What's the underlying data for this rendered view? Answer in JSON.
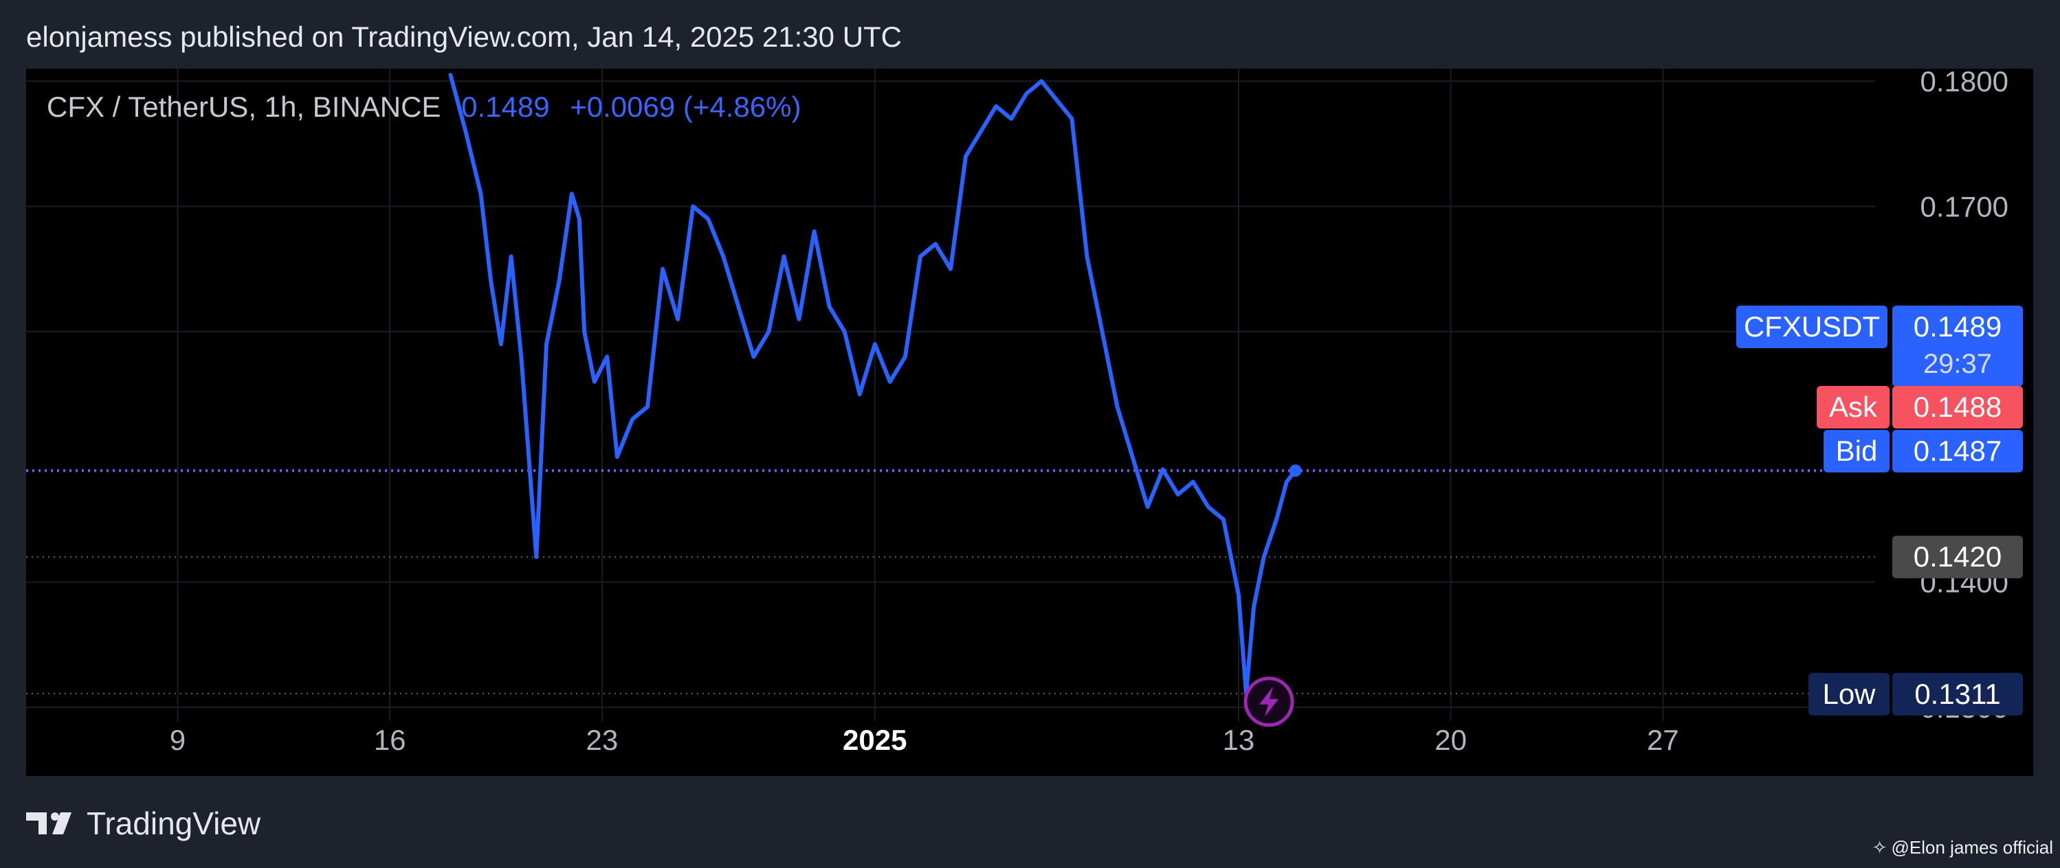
{
  "header": {
    "publisher_text": "elonjamess published on TradingView.com, Jan 14, 2025 21:30 UTC"
  },
  "legend": {
    "symbol": "CFX / TetherUS, 1h, BINANCE",
    "price": "0.1489",
    "change": "+0.0069 (+4.86%)"
  },
  "footer": {
    "logo_text": "TradingView",
    "watermark": "@Elon james official",
    "watermark_icon": "sparkle-diamond-icon"
  },
  "colors": {
    "background": "#1e222d",
    "chart_bg": "#000000",
    "line": "#2962ff",
    "symbol_badge": "#2962ff",
    "ask_badge": "#f7525f",
    "bid_badge": "#2962ff",
    "level_badge": "#4a4a4a",
    "low_badge": "#132457",
    "grid": "#1b1d24",
    "flash_icon": "#9c27b0"
  },
  "chart_data": {
    "type": "line",
    "title": "CFX / TetherUS, 1h, BINANCE",
    "xlabel": "",
    "ylabel": "",
    "grid": true,
    "x_ticks": [
      {
        "label": "9",
        "date": "2024-12-09",
        "bold": false
      },
      {
        "label": "16",
        "date": "2024-12-16",
        "bold": false
      },
      {
        "label": "23",
        "date": "2024-12-23",
        "bold": false
      },
      {
        "label": "2025",
        "date": "2025-01-01",
        "bold": true
      },
      {
        "label": "13",
        "date": "2025-01-13",
        "bold": false
      },
      {
        "label": "20",
        "date": "2025-01-20",
        "bold": false
      },
      {
        "label": "27",
        "date": "2025-01-27",
        "bold": false
      }
    ],
    "y_ticks": [
      "0.1800",
      "0.1700",
      "0.1600",
      "0.1400",
      "0.1300"
    ],
    "y_range": [
      0.1289,
      0.181
    ],
    "x_range": [
      "2024-12-04",
      "2025-02-03"
    ],
    "series": [
      {
        "values": [
          [
            "2024-12-18",
            0.1805
          ],
          [
            "2024-12-18T12:00",
            0.176
          ],
          [
            "2024-12-19",
            0.171
          ],
          [
            "2024-12-19T08:00",
            0.164
          ],
          [
            "2024-12-19T16:00",
            0.159
          ],
          [
            "2024-12-20",
            0.166
          ],
          [
            "2024-12-20T08:00",
            0.158
          ],
          [
            "2024-12-20T14:00",
            0.15
          ],
          [
            "2024-12-20T20:00",
            0.142
          ],
          [
            "2024-12-21T04:00",
            0.159
          ],
          [
            "2024-12-21T14:00",
            0.164
          ],
          [
            "2024-12-22",
            0.171
          ],
          [
            "2024-12-22T06:00",
            0.169
          ],
          [
            "2024-12-22T10:00",
            0.16
          ],
          [
            "2024-12-22T18:00",
            0.156
          ],
          [
            "2024-12-23T04:00",
            0.158
          ],
          [
            "2024-12-23T12:00",
            0.15
          ],
          [
            "2024-12-24",
            0.153
          ],
          [
            "2024-12-24T12:00",
            0.154
          ],
          [
            "2024-12-25",
            0.165
          ],
          [
            "2024-12-25T12:00",
            0.161
          ],
          [
            "2024-12-26",
            0.17
          ],
          [
            "2024-12-26T12:00",
            0.169
          ],
          [
            "2024-12-27",
            0.166
          ],
          [
            "2024-12-27T12:00",
            0.162
          ],
          [
            "2024-12-28",
            0.158
          ],
          [
            "2024-12-28T12:00",
            0.16
          ],
          [
            "2024-12-29",
            0.166
          ],
          [
            "2024-12-29T12:00",
            0.161
          ],
          [
            "2024-12-30",
            0.168
          ],
          [
            "2024-12-30T12:00",
            0.162
          ],
          [
            "2024-12-31",
            0.16
          ],
          [
            "2024-12-31T12:00",
            0.155
          ],
          [
            "2025-01-01",
            0.159
          ],
          [
            "2025-01-01T12:00",
            0.156
          ],
          [
            "2025-01-02",
            0.158
          ],
          [
            "2025-01-02T12:00",
            0.166
          ],
          [
            "2025-01-03",
            0.167
          ],
          [
            "2025-01-03T12:00",
            0.165
          ],
          [
            "2025-01-04",
            0.174
          ],
          [
            "2025-01-04T12:00",
            0.176
          ],
          [
            "2025-01-05",
            0.178
          ],
          [
            "2025-01-05T12:00",
            0.177
          ],
          [
            "2025-01-06",
            0.179
          ],
          [
            "2025-01-06T12:00",
            0.18
          ],
          [
            "2025-01-07",
            0.1785
          ],
          [
            "2025-01-07T12:00",
            0.177
          ],
          [
            "2025-01-08",
            0.166
          ],
          [
            "2025-01-08T12:00",
            0.16
          ],
          [
            "2025-01-09",
            0.154
          ],
          [
            "2025-01-09T12:00",
            0.15
          ],
          [
            "2025-01-10",
            0.146
          ],
          [
            "2025-01-10T12:00",
            0.149
          ],
          [
            "2025-01-11",
            0.147
          ],
          [
            "2025-01-11T12:00",
            0.148
          ],
          [
            "2025-01-12",
            0.146
          ],
          [
            "2025-01-12T12:00",
            0.145
          ],
          [
            "2025-01-13",
            0.139
          ],
          [
            "2025-01-13T06:00",
            0.1311
          ],
          [
            "2025-01-13T12:00",
            0.138
          ],
          [
            "2025-01-13T20:00",
            0.142
          ],
          [
            "2025-01-14T06:00",
            0.145
          ],
          [
            "2025-01-14T14:00",
            0.148
          ],
          [
            "2025-01-14T21:00",
            0.1489
          ]
        ]
      }
    ],
    "price_lines": [
      {
        "value": 0.1489,
        "style": "dotted",
        "color": "#7b5cf0"
      },
      {
        "value": 0.142,
        "style": "dotted",
        "color": "#666666"
      },
      {
        "value": 0.1311,
        "style": "dotted",
        "color": "#666666"
      }
    ],
    "axis_badges": [
      {
        "label": "CFXUSDT",
        "value": "0.1489",
        "sub": "29:37",
        "color": "#2962ff"
      },
      {
        "label": "Ask",
        "value": "0.1488",
        "color": "#f7525f"
      },
      {
        "label": "Bid",
        "value": "0.1487",
        "color": "#2962ff"
      },
      {
        "label": "",
        "value": "0.1420",
        "color": "#4a4a4a"
      },
      {
        "label": "Low",
        "value": "0.1311",
        "color": "#132457"
      }
    ],
    "flash_icon": {
      "date": "2025-01-14T00:00",
      "value": 0.1311,
      "name": "lightning-icon"
    }
  }
}
